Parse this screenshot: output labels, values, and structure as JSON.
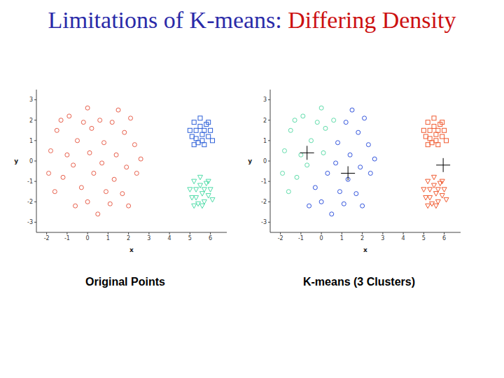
{
  "title": [
    {
      "text": "Limitations of K-means:",
      "color": "#2a2aa8"
    },
    {
      "text": "Differing Density",
      "color": "#cc1010"
    }
  ],
  "chart_data": [
    {
      "type": "scatter",
      "title": "Original Points",
      "x_label": "x",
      "y_label": "y",
      "xlim": [
        -2.5,
        6.8
      ],
      "ylim": [
        -3.5,
        3.5
      ],
      "xticks": [
        -2,
        -1,
        0,
        1,
        2,
        3,
        4,
        5,
        6
      ],
      "yticks": [
        -3,
        -2,
        -1,
        0,
        1,
        2,
        3
      ],
      "series": [
        {
          "color": "#e8604c",
          "marker": "circle",
          "x": [
            -1.8,
            -1.5,
            -1.2,
            -1.6,
            -0.9,
            -0.5,
            -0.7,
            -1.0,
            -0.3,
            -0.6,
            0.0,
            0.2,
            0.1,
            0.3,
            0.0,
            0.6,
            0.8,
            0.7,
            0.9,
            0.5,
            1.2,
            1.4,
            1.3,
            1.1,
            1.8,
            1.9,
            1.7,
            2.3,
            2.4,
            2.1,
            2.6,
            -1.9,
            -1.3,
            -0.2,
            2.0,
            1.5
          ],
          "values": [
            0.5,
            1.5,
            -0.8,
            -1.5,
            2.2,
            1.0,
            -0.2,
            0.3,
            -1.3,
            -2.2,
            2.6,
            1.6,
            0.4,
            -0.6,
            -2.0,
            2.0,
            0.9,
            -0.1,
            -1.5,
            -2.6,
            1.9,
            0.3,
            -0.9,
            -2.1,
            1.4,
            -0.3,
            -1.6,
            0.8,
            -0.6,
            2.1,
            0.1,
            -0.6,
            2.0,
            1.9,
            -2.2,
            2.5
          ]
        },
        {
          "color": "#2c5fd8",
          "marker": "square",
          "x": [
            5.0,
            5.2,
            5.3,
            5.5,
            5.6,
            5.4,
            5.8,
            5.9,
            5.7,
            6.0,
            5.1,
            5.5,
            6.1,
            5.3,
            5.7,
            5.9,
            5.6,
            5.2
          ],
          "values": [
            1.5,
            1.9,
            1.1,
            1.7,
            1.3,
            0.9,
            1.8,
            1.2,
            0.8,
            1.5,
            1.2,
            2.1,
            1.0,
            1.5,
            1.5,
            1.9,
            1.0,
            0.8
          ]
        },
        {
          "color": "#4fdca8",
          "marker": "triangle",
          "x": [
            5.0,
            5.2,
            5.3,
            5.5,
            5.6,
            5.4,
            5.8,
            5.9,
            5.7,
            6.0,
            5.1,
            5.5,
            6.1,
            5.3,
            5.7,
            5.9,
            5.6,
            5.2
          ],
          "values": [
            -1.4,
            -1.0,
            -1.8,
            -1.2,
            -1.6,
            -2.1,
            -1.1,
            -1.7,
            -2.0,
            -1.4,
            -1.8,
            -0.8,
            -1.9,
            -1.4,
            -1.4,
            -1.0,
            -2.2,
            -2.2
          ]
        }
      ]
    },
    {
      "type": "scatter",
      "title": "K-means (3 Clusters)",
      "x_label": "x",
      "y_label": "y",
      "xlim": [
        -2.5,
        6.8
      ],
      "ylim": [
        -3.5,
        3.5
      ],
      "xticks": [
        -2,
        -1,
        0,
        1,
        2,
        3,
        4,
        5,
        6
      ],
      "yticks": [
        -3,
        -2,
        -1,
        0,
        1,
        2,
        3
      ],
      "series": [
        {
          "color": "#5fdcaa",
          "marker": "circle",
          "x": [
            -1.8,
            -1.5,
            -1.2,
            -1.6,
            -0.9,
            -0.5,
            -0.7,
            -1.0,
            0.0,
            0.2,
            0.1,
            0.6,
            -1.9,
            -1.3,
            -0.2
          ],
          "values": [
            0.5,
            1.5,
            -0.8,
            -1.5,
            2.2,
            1.0,
            -0.2,
            0.3,
            2.6,
            1.6,
            0.4,
            2.0,
            -0.6,
            2.0,
            1.9
          ]
        },
        {
          "color": "#3355dd",
          "marker": "circle",
          "x": [
            -0.3,
            -0.6,
            0.3,
            0.0,
            0.8,
            0.7,
            0.9,
            0.5,
            1.2,
            1.4,
            1.3,
            1.1,
            1.8,
            1.9,
            1.7,
            2.3,
            2.4,
            2.1,
            2.6,
            2.0,
            1.5
          ],
          "values": [
            -1.3,
            -2.2,
            -0.6,
            -2.0,
            0.9,
            -0.1,
            -1.5,
            -2.6,
            1.9,
            0.3,
            -0.9,
            -2.1,
            1.4,
            -0.3,
            -1.6,
            0.8,
            -0.6,
            2.1,
            0.1,
            -2.2,
            2.5
          ]
        },
        {
          "color": "#f05a30",
          "marker": "square",
          "x": [
            5.0,
            5.2,
            5.3,
            5.5,
            5.6,
            5.4,
            5.8,
            5.9,
            5.7,
            6.0,
            5.1,
            5.5,
            6.1,
            5.3,
            5.7,
            5.9,
            5.6,
            5.2
          ],
          "values": [
            1.5,
            1.9,
            1.1,
            1.7,
            1.3,
            0.9,
            1.8,
            1.2,
            0.8,
            1.5,
            1.2,
            2.1,
            1.0,
            1.5,
            1.5,
            1.9,
            1.0,
            0.8
          ]
        },
        {
          "color": "#f05a30",
          "marker": "triangle",
          "x": [
            5.0,
            5.2,
            5.3,
            5.5,
            5.6,
            5.4,
            5.8,
            5.9,
            5.7,
            6.0,
            5.1,
            5.5,
            6.1,
            5.3,
            5.7,
            5.9,
            5.6,
            5.2
          ],
          "values": [
            -1.4,
            -1.0,
            -1.8,
            -1.2,
            -1.6,
            -2.1,
            -1.1,
            -1.7,
            -2.0,
            -1.4,
            -1.8,
            -0.8,
            -1.9,
            -1.4,
            -1.4,
            -1.0,
            -2.2,
            -2.2
          ]
        },
        {
          "color": "#000000",
          "marker": "plus",
          "x": [
            -0.7,
            1.3,
            5.95
          ],
          "values": [
            0.4,
            -0.6,
            -0.2
          ]
        }
      ]
    }
  ]
}
